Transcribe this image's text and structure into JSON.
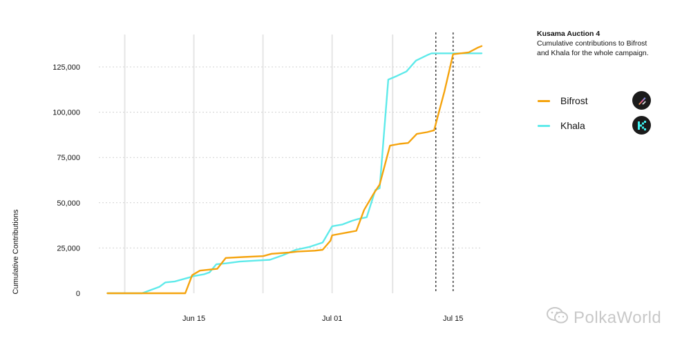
{
  "chart_data": {
    "type": "line",
    "title": "Kusama Auction 4",
    "subtitle": "Cumulative contributions to Bifrost and Khala for the whole campaign.",
    "xlabel": "",
    "ylabel": "Cumulative Contributions",
    "xlim": [
      "2021-06-04",
      "2021-07-18"
    ],
    "ylim": [
      0,
      140000
    ],
    "y_ticks": [
      0,
      25000,
      50000,
      75000,
      100000,
      125000
    ],
    "y_tick_labels": [
      "0",
      "25,000",
      "50,000",
      "75,000",
      "100,000",
      "125,000"
    ],
    "x_ticks": [
      "2021-06-15",
      "2021-07-01",
      "2021-07-15"
    ],
    "x_tick_labels": [
      "Jun 15",
      "Jul 01",
      "Jul 15"
    ],
    "vertical_gridlines": [
      "2021-06-07",
      "2021-06-15",
      "2021-06-23",
      "2021-07-01",
      "2021-07-08"
    ],
    "dashed_markers": [
      "2021-07-13",
      "2021-07-15"
    ],
    "grid": true,
    "legend_position": "right",
    "series": [
      {
        "name": "Bifrost",
        "color": "#F5A30C",
        "logo": "bifrost-logo-icon",
        "points": [
          [
            "2021-06-05",
            0
          ],
          [
            "2021-06-08",
            0
          ],
          [
            "2021-06-11",
            0
          ],
          [
            "2021-06-14",
            0
          ],
          [
            "2021-06-14.8",
            10000
          ],
          [
            "2021-06-15.7",
            12500
          ],
          [
            "2021-06-17.7",
            13500
          ],
          [
            "2021-06-18.7",
            19500
          ],
          [
            "2021-06-20.7",
            20000
          ],
          [
            "2021-06-23",
            20500
          ],
          [
            "2021-06-24",
            21800
          ],
          [
            "2021-06-26",
            22500
          ],
          [
            "2021-06-27",
            23000
          ],
          [
            "2021-06-29",
            23500
          ],
          [
            "2021-06-29.9",
            24000
          ],
          [
            "2021-06-30.8",
            29000
          ],
          [
            "2021-07-01",
            32000
          ],
          [
            "2021-07-02.7",
            33500
          ],
          [
            "2021-07-03.8",
            34500
          ],
          [
            "2021-07-04.7",
            46000
          ],
          [
            "2021-07-05.8",
            55000
          ],
          [
            "2021-07-06.5",
            60000
          ],
          [
            "2021-07-07.7",
            81500
          ],
          [
            "2021-07-08.8",
            82500
          ],
          [
            "2021-07-09.8",
            83000
          ],
          [
            "2021-07-10.8",
            88000
          ],
          [
            "2021-07-12.0",
            89000
          ],
          [
            "2021-07-12.8",
            90000
          ],
          [
            "2021-07-14",
            111500
          ],
          [
            "2021-07-15",
            132000
          ],
          [
            "2021-07-16.8",
            133000
          ],
          [
            "2021-07-17.8",
            135500
          ],
          [
            "2021-07-18.3",
            136500
          ]
        ]
      },
      {
        "name": "Khala",
        "color": "#5EEAEA",
        "logo": "khala-logo-icon",
        "points": [
          [
            "2021-06-05",
            0
          ],
          [
            "2021-06-09",
            0
          ],
          [
            "2021-06-11",
            3500
          ],
          [
            "2021-06-11.7",
            6000
          ],
          [
            "2021-06-12.8",
            6500
          ],
          [
            "2021-06-14.3",
            8500
          ],
          [
            "2021-06-15",
            9500
          ],
          [
            "2021-06-16.2",
            10500
          ],
          [
            "2021-06-16.8",
            11500
          ],
          [
            "2021-06-17.6",
            16000
          ],
          [
            "2021-06-18.7",
            16500
          ],
          [
            "2021-06-20.3",
            17500
          ],
          [
            "2021-06-22",
            18000
          ],
          [
            "2021-06-23.8",
            18500
          ],
          [
            "2021-06-25.3",
            21000
          ],
          [
            "2021-06-26.8",
            24000
          ],
          [
            "2021-06-28.3",
            25500
          ],
          [
            "2021-06-29.9",
            28000
          ],
          [
            "2021-07-01",
            37000
          ],
          [
            "2021-07-02.2",
            38000
          ],
          [
            "2021-07-03.3",
            40000
          ],
          [
            "2021-07-04",
            41000
          ],
          [
            "2021-07-05",
            42000
          ],
          [
            "2021-07-06",
            57000
          ],
          [
            "2021-07-06.5",
            58000
          ],
          [
            "2021-07-07.5",
            118000
          ],
          [
            "2021-07-08.5",
            120000
          ],
          [
            "2021-07-09.6",
            122500
          ],
          [
            "2021-07-10.7",
            128500
          ],
          [
            "2021-07-12",
            131500
          ],
          [
            "2021-07-12.5",
            132500
          ],
          [
            "2021-07-14",
            132500
          ],
          [
            "2021-07-16",
            132500
          ],
          [
            "2021-07-18.3",
            132500
          ]
        ]
      }
    ]
  },
  "watermark": {
    "text": "PolkaWorld",
    "icon": "wechat-icon"
  }
}
